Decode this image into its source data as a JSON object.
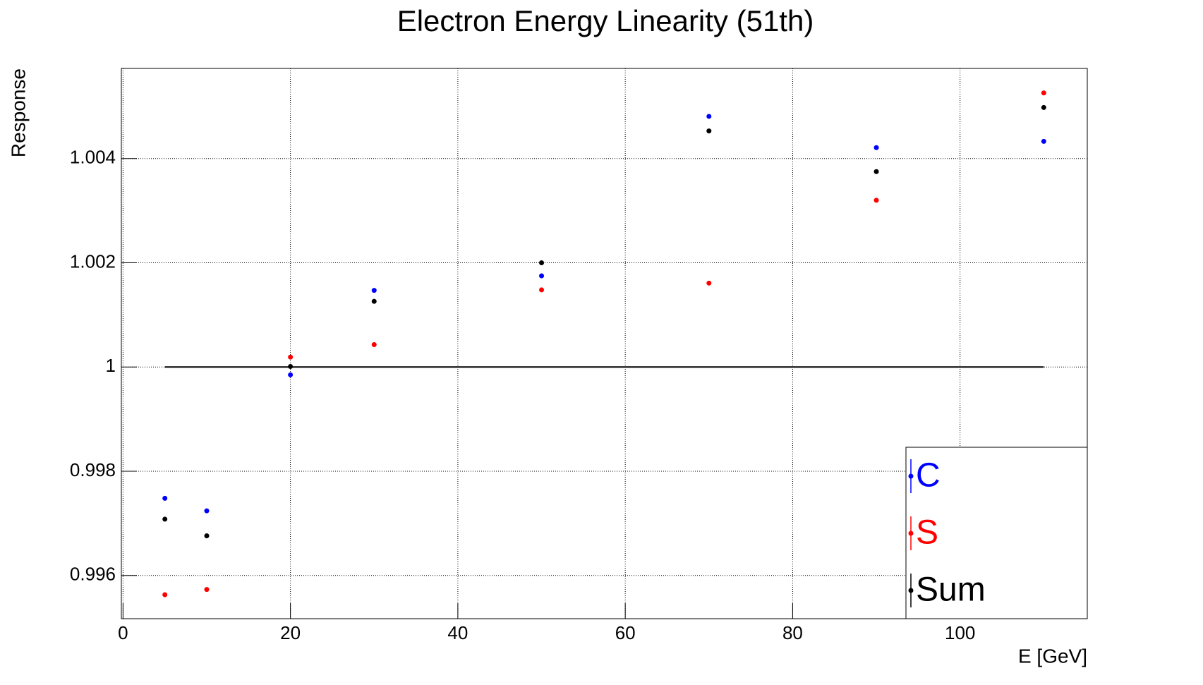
{
  "chart_data": {
    "type": "scatter",
    "title": "Electron Energy Linearity (51th)",
    "x_label": "E [GeV]",
    "y_label": "Response",
    "x": [
      5,
      10,
      20,
      30,
      50,
      70,
      90,
      110
    ],
    "series": [
      {
        "name": "C",
        "color": "#0000ff",
        "values": [
          0.99748,
          0.99724,
          0.99985,
          1.00147,
          1.00175,
          1.00481,
          1.00421,
          1.00433
        ]
      },
      {
        "name": "S",
        "color": "#ff0000",
        "values": [
          0.99563,
          0.99573,
          1.00019,
          1.00043,
          1.00148,
          1.00161,
          1.0032,
          1.00526
        ]
      },
      {
        "name": "Sum",
        "color": "#000000",
        "values": [
          0.99708,
          0.99676,
          1.00001,
          1.00126,
          1.002,
          1.00453,
          1.00375,
          1.00498
        ]
      }
    ],
    "reference_line": {
      "y": 1,
      "x": [
        5,
        110
      ]
    },
    "xlim": [
      -0.2,
      115.2
    ],
    "ylim": [
      0.99517,
      1.00573
    ],
    "xticks": [
      0,
      20,
      40,
      60,
      80,
      100
    ],
    "yticks": [
      0.996,
      0.998,
      1,
      1.002,
      1.004
    ],
    "grid": true,
    "legend": "bottom-right"
  }
}
